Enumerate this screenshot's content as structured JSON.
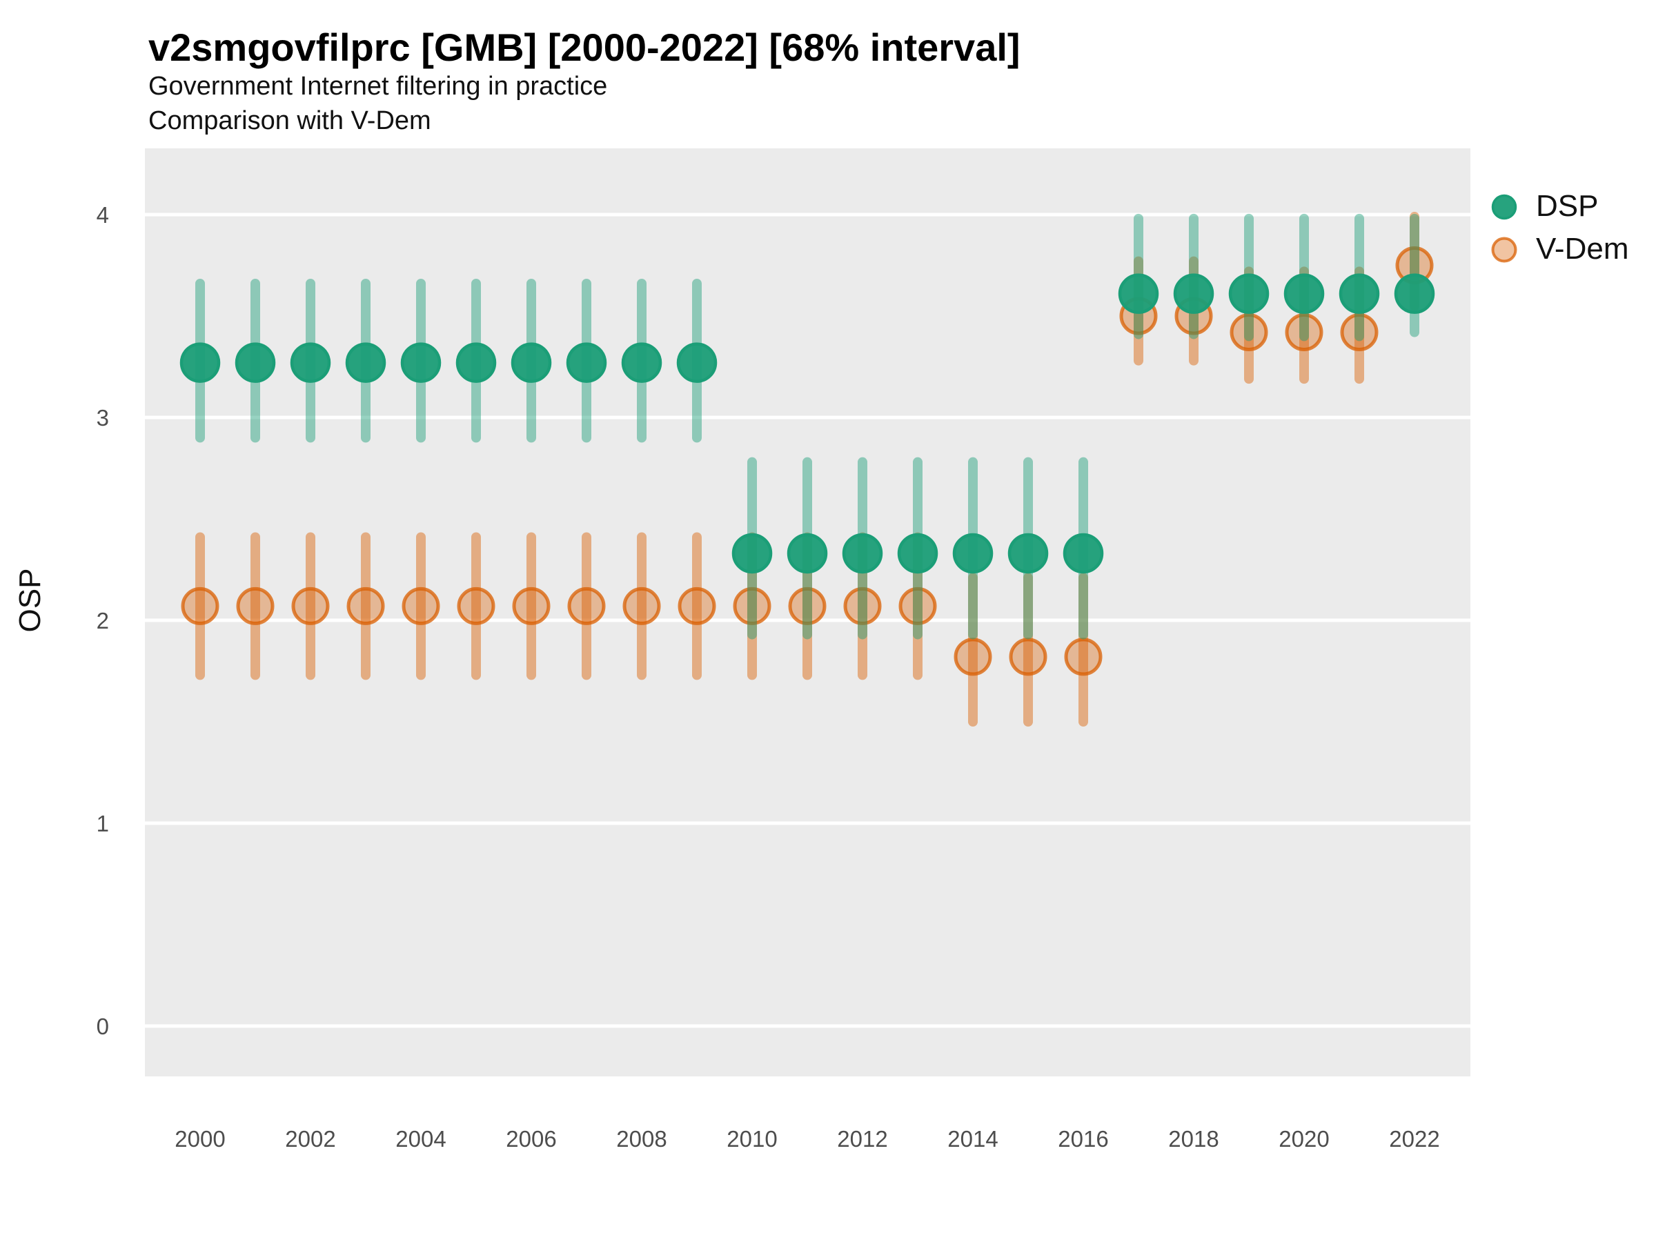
{
  "header": {
    "title": "v2smgovfilprc [GMB] [2000-2022] [68% interval]",
    "subtitle1": "Government Internet filtering in practice",
    "subtitle2": "Comparison with V-Dem"
  },
  "legend": {
    "position": "right",
    "items": [
      {
        "label": "DSP",
        "color": "#1B9E77",
        "marker": "filled-circle-icon"
      },
      {
        "label": "V-Dem",
        "color": "#D95F02",
        "marker": "open-circle-icon"
      }
    ]
  },
  "axes": {
    "ylabel": "OSP",
    "y_ticks": [
      0,
      1,
      2,
      3,
      4
    ],
    "x_ticks": [
      2000,
      2002,
      2004,
      2006,
      2008,
      2010,
      2012,
      2014,
      2016,
      2018,
      2020,
      2022
    ],
    "tick_color": "#4D4D4D",
    "panel_fill": "#EBEBEB",
    "gridline_color": "#FFFFFF"
  },
  "chart_data": {
    "type": "pointrange",
    "title": "v2smgovfilprc [GMB] [2000-2022] [68% interval]",
    "subtitle": "Government Internet filtering in practice — Comparison with V-Dem",
    "interval": "68%",
    "xlabel": "",
    "ylabel": "OSP",
    "xlim": [
      1999,
      2023
    ],
    "ylim": [
      -0.25,
      4.33
    ],
    "grid": "horizontal-only",
    "legend_position": "right",
    "series": [
      {
        "name": "DSP",
        "color": "#1B9E77",
        "points": [
          {
            "year": 2000,
            "est": 3.27,
            "lo": 2.9,
            "hi": 3.66
          },
          {
            "year": 2001,
            "est": 3.27,
            "lo": 2.9,
            "hi": 3.66
          },
          {
            "year": 2002,
            "est": 3.27,
            "lo": 2.9,
            "hi": 3.66
          },
          {
            "year": 2003,
            "est": 3.27,
            "lo": 2.9,
            "hi": 3.66
          },
          {
            "year": 2004,
            "est": 3.27,
            "lo": 2.9,
            "hi": 3.66
          },
          {
            "year": 2005,
            "est": 3.27,
            "lo": 2.9,
            "hi": 3.66
          },
          {
            "year": 2006,
            "est": 3.27,
            "lo": 2.9,
            "hi": 3.66
          },
          {
            "year": 2007,
            "est": 3.27,
            "lo": 2.9,
            "hi": 3.66
          },
          {
            "year": 2008,
            "est": 3.27,
            "lo": 2.9,
            "hi": 3.66
          },
          {
            "year": 2009,
            "est": 3.27,
            "lo": 2.9,
            "hi": 3.66
          },
          {
            "year": 2010,
            "est": 2.33,
            "lo": 1.93,
            "hi": 2.78
          },
          {
            "year": 2011,
            "est": 2.33,
            "lo": 1.93,
            "hi": 2.78
          },
          {
            "year": 2012,
            "est": 2.33,
            "lo": 1.93,
            "hi": 2.78
          },
          {
            "year": 2013,
            "est": 2.33,
            "lo": 1.93,
            "hi": 2.78
          },
          {
            "year": 2014,
            "est": 2.33,
            "lo": 1.93,
            "hi": 2.78
          },
          {
            "year": 2015,
            "est": 2.33,
            "lo": 1.93,
            "hi": 2.78
          },
          {
            "year": 2016,
            "est": 2.33,
            "lo": 1.93,
            "hi": 2.78
          },
          {
            "year": 2017,
            "est": 3.61,
            "lo": 3.41,
            "hi": 3.98
          },
          {
            "year": 2018,
            "est": 3.61,
            "lo": 3.41,
            "hi": 3.98
          },
          {
            "year": 2019,
            "est": 3.61,
            "lo": 3.4,
            "hi": 3.98
          },
          {
            "year": 2020,
            "est": 3.61,
            "lo": 3.4,
            "hi": 3.98
          },
          {
            "year": 2021,
            "est": 3.61,
            "lo": 3.4,
            "hi": 3.98
          },
          {
            "year": 2022,
            "est": 3.61,
            "lo": 3.42,
            "hi": 3.98
          }
        ]
      },
      {
        "name": "V-Dem",
        "color": "#D95F02",
        "points": [
          {
            "year": 2000,
            "est": 2.07,
            "lo": 1.73,
            "hi": 2.41
          },
          {
            "year": 2001,
            "est": 2.07,
            "lo": 1.73,
            "hi": 2.41
          },
          {
            "year": 2002,
            "est": 2.07,
            "lo": 1.73,
            "hi": 2.41
          },
          {
            "year": 2003,
            "est": 2.07,
            "lo": 1.73,
            "hi": 2.41
          },
          {
            "year": 2004,
            "est": 2.07,
            "lo": 1.73,
            "hi": 2.41
          },
          {
            "year": 2005,
            "est": 2.07,
            "lo": 1.73,
            "hi": 2.41
          },
          {
            "year": 2006,
            "est": 2.07,
            "lo": 1.73,
            "hi": 2.41
          },
          {
            "year": 2007,
            "est": 2.07,
            "lo": 1.73,
            "hi": 2.41
          },
          {
            "year": 2008,
            "est": 2.07,
            "lo": 1.73,
            "hi": 2.41
          },
          {
            "year": 2009,
            "est": 2.07,
            "lo": 1.73,
            "hi": 2.41
          },
          {
            "year": 2010,
            "est": 2.07,
            "lo": 1.73,
            "hi": 2.41
          },
          {
            "year": 2011,
            "est": 2.07,
            "lo": 1.73,
            "hi": 2.41
          },
          {
            "year": 2012,
            "est": 2.07,
            "lo": 1.73,
            "hi": 2.41
          },
          {
            "year": 2013,
            "est": 2.07,
            "lo": 1.73,
            "hi": 2.41
          },
          {
            "year": 2014,
            "est": 1.82,
            "lo": 1.5,
            "hi": 2.21
          },
          {
            "year": 2015,
            "est": 1.82,
            "lo": 1.5,
            "hi": 2.21
          },
          {
            "year": 2016,
            "est": 1.82,
            "lo": 1.5,
            "hi": 2.21
          },
          {
            "year": 2017,
            "est": 3.5,
            "lo": 3.28,
            "hi": 3.77
          },
          {
            "year": 2018,
            "est": 3.5,
            "lo": 3.28,
            "hi": 3.77
          },
          {
            "year": 2019,
            "est": 3.42,
            "lo": 3.19,
            "hi": 3.72
          },
          {
            "year": 2020,
            "est": 3.42,
            "lo": 3.19,
            "hi": 3.72
          },
          {
            "year": 2021,
            "est": 3.42,
            "lo": 3.19,
            "hi": 3.72
          },
          {
            "year": 2022,
            "est": 3.75,
            "lo": 3.55,
            "hi": 3.99
          }
        ]
      }
    ]
  }
}
